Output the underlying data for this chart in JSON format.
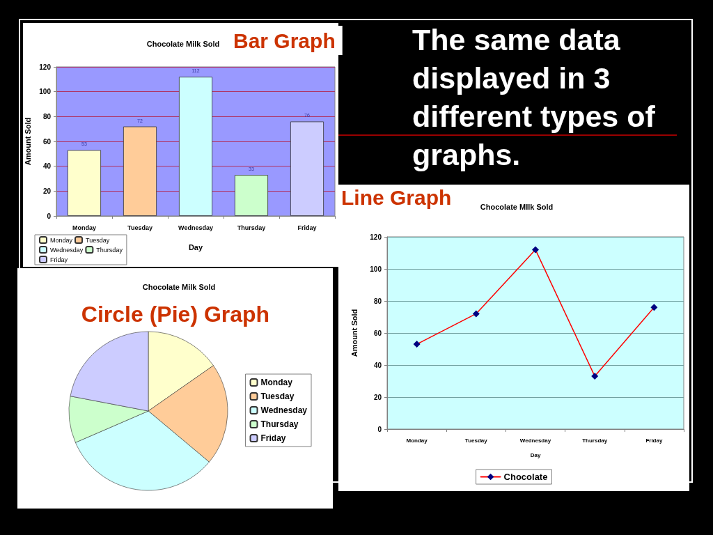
{
  "chart_data": [
    {
      "type": "bar",
      "title": "Chocolate Milk Sold",
      "subtitle": "Bar Graph",
      "xlabel": "Day",
      "ylabel": "Amount Sold",
      "categories": [
        "Monday",
        "Tuesday",
        "Wednesday",
        "Thursday",
        "Friday"
      ],
      "series": [
        {
          "name": "Monday",
          "color": "#ffffcc",
          "values": [
            53,
            null,
            null,
            null,
            null
          ]
        },
        {
          "name": "Tuesday",
          "color": "#ffcc99",
          "values": [
            null,
            72,
            null,
            null,
            null
          ]
        },
        {
          "name": "Wednesday",
          "color": "#ccffff",
          "values": [
            null,
            null,
            112,
            null,
            null
          ]
        },
        {
          "name": "Thursday",
          "color": "#ccffcc",
          "values": [
            null,
            null,
            null,
            33,
            null
          ]
        },
        {
          "name": "Friday",
          "color": "#ccccff",
          "values": [
            null,
            null,
            null,
            null,
            76
          ]
        }
      ],
      "ylim": [
        0,
        120
      ],
      "yticks": [
        0,
        20,
        40,
        60,
        80,
        100,
        120
      ],
      "grid": "y",
      "legend": "bottom left",
      "data_labels": true
    },
    {
      "type": "other",
      "title": "The same data displayed in 3 different types of graphs."
    },
    {
      "type": "line",
      "title": "Chocolate MIlk Sold",
      "subtitle": "Line Graph",
      "xlabel": "Day",
      "ylabel": "Amount Sold",
      "categories": [
        "Monday",
        "Tuesday",
        "Wednesday",
        "Thursday",
        "Friday"
      ],
      "series": [
        {
          "name": "Chocolate",
          "color": "#ff0000",
          "colors": [
            "#000080",
            "#000080",
            "#000080",
            "#000080",
            "#000080"
          ],
          "values": [
            53,
            72,
            112,
            33,
            76
          ]
        }
      ],
      "ylim": [
        0,
        120
      ],
      "yticks": [
        0,
        20,
        40,
        60,
        80,
        100,
        120
      ],
      "grid": "y",
      "legend": "bottom",
      "marker": "diamond",
      "line_style": "solid"
    },
    {
      "type": "pie",
      "title": "Chocolate Milk Sold",
      "subtitle": "Circle (Pie) Graph",
      "categories": [
        "Monday",
        "Tuesday",
        "Wednesday",
        "Thursday",
        "Friday"
      ],
      "values": [
        15.3,
        20.8,
        32.4,
        9.5,
        22
      ],
      "colors": [
        "#ffffcc",
        "#ffcc99",
        "#ccffff",
        "#ccffcc",
        "#ccccff"
      ],
      "legend": "right"
    }
  ]
}
